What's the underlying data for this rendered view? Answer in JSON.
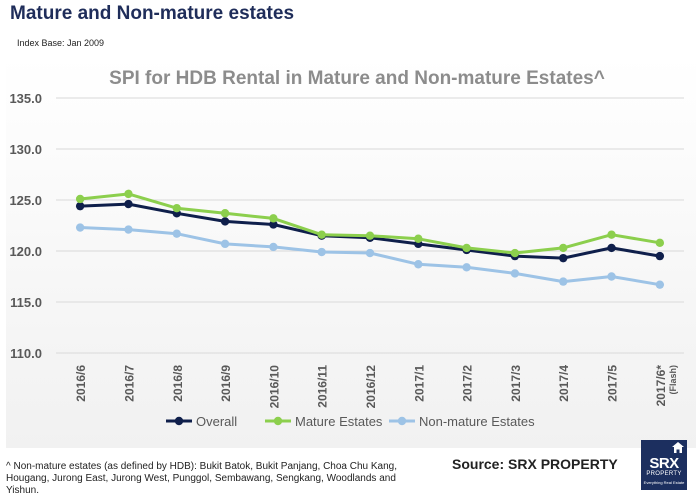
{
  "page": {
    "heading": "Mature and Non-mature estates",
    "index_base": "Index Base: Jan 2009",
    "footnote": "^ Non-mature estates (as defined by HDB): Bukit Batok, Bukit Panjang, Choa Chu Kang, Hougang, Jurong East, Jurong West, Punggol, Sembawang, Sengkang, Woodlands and Yishun.",
    "source": "Source:  SRX PROPERTY",
    "logo": {
      "main": "SRX",
      "sub": "PROPERTY",
      "tagline": "Everything Real Estate"
    }
  },
  "colors": {
    "heading": "#1f2d5a",
    "chart_title": "#8c8c8c",
    "axis_text": "#595959",
    "grid": "#d9d9d9",
    "logo_bg": "#1c2f5f"
  },
  "chart_data": {
    "type": "line",
    "title": "SPI for HDB Rental in Mature and Non-mature Estates^",
    "xlabel": "",
    "ylabel": "",
    "categories": [
      "2016/6",
      "2016/7",
      "2016/8",
      "2016/9",
      "2016/10",
      "2016/11",
      "2016/12",
      "2017/1",
      "2017/2",
      "2017/3",
      "2017/4",
      "2017/5",
      "2017/6*"
    ],
    "category_notes": [
      "",
      "",
      "",
      "",
      "",
      "",
      "",
      "",
      "",
      "",
      "",
      "",
      "(Flash)"
    ],
    "ylim": [
      110.0,
      135.0
    ],
    "yticks": [
      110.0,
      115.0,
      120.0,
      125.0,
      130.0,
      135.0
    ],
    "ytick_labels": [
      "110.0",
      "115.0",
      "120.0",
      "125.0",
      "130.0",
      "135.0"
    ],
    "grid": true,
    "legend_position": "bottom",
    "series": [
      {
        "name": "Overall",
        "color": "#0f1f4b",
        "values": [
          124.4,
          124.6,
          123.7,
          122.9,
          122.6,
          121.5,
          121.3,
          120.7,
          120.1,
          119.5,
          119.3,
          120.3,
          119.5
        ]
      },
      {
        "name": "Mature Estates",
        "color": "#8ccf4d",
        "values": [
          125.1,
          125.6,
          124.2,
          123.7,
          123.2,
          121.6,
          121.5,
          121.2,
          120.3,
          119.8,
          120.3,
          121.6,
          120.8
        ]
      },
      {
        "name": "Non-mature Estates",
        "color": "#9dc3e6",
        "values": [
          122.3,
          122.1,
          121.7,
          120.7,
          120.4,
          119.9,
          119.8,
          118.7,
          118.4,
          117.8,
          117.0,
          117.5,
          116.7
        ]
      }
    ]
  }
}
